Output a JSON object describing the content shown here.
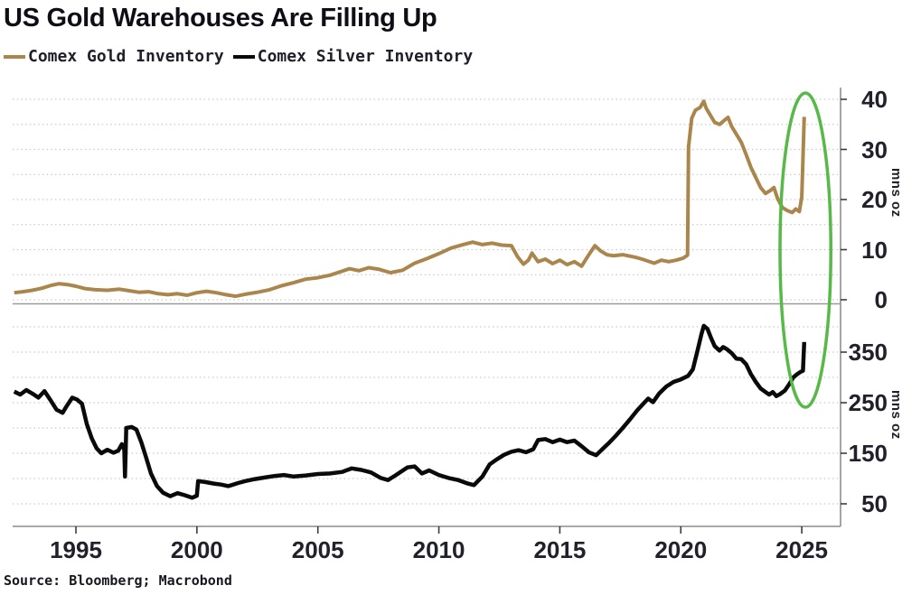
{
  "title": "US Gold Warehouses Are Filling Up",
  "source": "Source: Bloomberg; Macrobond",
  "colors": {
    "background": "#ffffff",
    "text": "#21212b",
    "gold_line": "#aa864d",
    "silver_line": "#0a0a0a",
    "grid": "#c9c9c9",
    "axis": "#9b9b9b",
    "tick": "#3c3c46",
    "annotation_green": "#57b947"
  },
  "legend": {
    "items": [
      {
        "label": "Comex Gold Inventory",
        "color": "#aa864d"
      },
      {
        "label": "Comex Silver Inventory",
        "color": "#0a0a0a"
      }
    ]
  },
  "x_axis": {
    "tick_labels": [
      "1995",
      "2000",
      "2005",
      "2010",
      "2015",
      "2020",
      "2025"
    ],
    "tick_years": [
      1995,
      2000,
      2005,
      2010,
      2015,
      2020,
      2025
    ],
    "range_years": [
      1992.4,
      2026.6
    ]
  },
  "annotation": {
    "shape": "ellipse",
    "color": "#57b947",
    "x_year_range": [
      2024.1,
      2026.2
    ],
    "covers_panels": [
      "top",
      "bottom"
    ]
  },
  "chart_data": [
    {
      "type": "line",
      "panel": "top",
      "ylabel": "mns oz",
      "yticks": [
        0,
        10,
        20,
        30,
        40
      ],
      "ylim": [
        0,
        42.5
      ],
      "grid_interval": 5,
      "grid_max": 40,
      "series": [
        {
          "name": "Comex Gold Inventory",
          "color": "#aa864d",
          "points": [
            [
              1992.45,
              1.4
            ],
            [
              1992.8,
              1.6
            ],
            [
              1993.2,
              1.9
            ],
            [
              1993.6,
              2.3
            ],
            [
              1994.0,
              2.9
            ],
            [
              1994.3,
              3.2
            ],
            [
              1994.7,
              3.0
            ],
            [
              1995.0,
              2.7
            ],
            [
              1995.4,
              2.2
            ],
            [
              1995.8,
              2.0
            ],
            [
              1996.3,
              1.9
            ],
            [
              1996.8,
              2.1
            ],
            [
              1997.2,
              1.8
            ],
            [
              1997.6,
              1.5
            ],
            [
              1998.0,
              1.6
            ],
            [
              1998.4,
              1.2
            ],
            [
              1998.8,
              1.0
            ],
            [
              1999.2,
              1.2
            ],
            [
              1999.6,
              0.9
            ],
            [
              2000.0,
              1.4
            ],
            [
              2000.4,
              1.7
            ],
            [
              2000.8,
              1.4
            ],
            [
              2001.2,
              1.0
            ],
            [
              2001.6,
              0.7
            ],
            [
              2002.0,
              1.1
            ],
            [
              2002.5,
              1.5
            ],
            [
              2003.0,
              2.0
            ],
            [
              2003.5,
              2.8
            ],
            [
              2004.0,
              3.4
            ],
            [
              2004.5,
              4.1
            ],
            [
              2005.0,
              4.4
            ],
            [
              2005.5,
              4.9
            ],
            [
              2006.0,
              5.7
            ],
            [
              2006.3,
              6.2
            ],
            [
              2006.7,
              5.8
            ],
            [
              2007.1,
              6.4
            ],
            [
              2007.5,
              6.1
            ],
            [
              2008.0,
              5.4
            ],
            [
              2008.5,
              5.9
            ],
            [
              2009.0,
              7.3
            ],
            [
              2009.5,
              8.2
            ],
            [
              2010.0,
              9.2
            ],
            [
              2010.5,
              10.3
            ],
            [
              2011.0,
              11.0
            ],
            [
              2011.4,
              11.5
            ],
            [
              2011.8,
              11.0
            ],
            [
              2012.2,
              11.3
            ],
            [
              2012.6,
              10.9
            ],
            [
              2013.0,
              10.8
            ],
            [
              2013.25,
              8.6
            ],
            [
              2013.5,
              7.1
            ],
            [
              2013.7,
              7.9
            ],
            [
              2013.85,
              9.3
            ],
            [
              2014.1,
              7.6
            ],
            [
              2014.4,
              8.1
            ],
            [
              2014.7,
              7.2
            ],
            [
              2015.0,
              7.9
            ],
            [
              2015.3,
              7.0
            ],
            [
              2015.6,
              7.6
            ],
            [
              2015.9,
              6.7
            ],
            [
              2016.2,
              9.0
            ],
            [
              2016.45,
              10.8
            ],
            [
              2016.7,
              9.7
            ],
            [
              2016.95,
              9.0
            ],
            [
              2017.2,
              8.8
            ],
            [
              2017.6,
              9.0
            ],
            [
              2018.1,
              8.5
            ],
            [
              2018.4,
              8.1
            ],
            [
              2018.9,
              7.3
            ],
            [
              2019.2,
              7.9
            ],
            [
              2019.5,
              7.6
            ],
            [
              2019.8,
              7.9
            ],
            [
              2020.1,
              8.3
            ],
            [
              2020.28,
              8.9
            ],
            [
              2020.32,
              30.5
            ],
            [
              2020.45,
              36.2
            ],
            [
              2020.6,
              37.8
            ],
            [
              2020.8,
              38.4
            ],
            [
              2020.95,
              39.6
            ],
            [
              2021.05,
              38.2
            ],
            [
              2021.2,
              37.0
            ],
            [
              2021.4,
              35.4
            ],
            [
              2021.6,
              35.0
            ],
            [
              2021.8,
              35.8
            ],
            [
              2021.95,
              36.4
            ],
            [
              2022.1,
              34.6
            ],
            [
              2022.3,
              33.0
            ],
            [
              2022.5,
              31.4
            ],
            [
              2022.7,
              29.0
            ],
            [
              2022.9,
              26.4
            ],
            [
              2023.1,
              24.4
            ],
            [
              2023.3,
              22.4
            ],
            [
              2023.5,
              21.2
            ],
            [
              2023.7,
              21.8
            ],
            [
              2023.85,
              22.4
            ],
            [
              2024.0,
              20.2
            ],
            [
              2024.2,
              18.4
            ],
            [
              2024.4,
              17.8
            ],
            [
              2024.6,
              17.4
            ],
            [
              2024.75,
              18.1
            ],
            [
              2024.9,
              17.6
            ],
            [
              2025.0,
              20.5
            ],
            [
              2025.1,
              36.5
            ]
          ]
        }
      ]
    },
    {
      "type": "line",
      "panel": "bottom",
      "ylabel": "mns oz",
      "yticks": [
        50,
        150,
        250,
        350
      ],
      "ylim": [
        5,
        450
      ],
      "grid_interval": 50,
      "grid_max": 400,
      "series": [
        {
          "name": "Comex Silver Inventory",
          "color": "#0a0a0a",
          "points": [
            [
              1992.45,
              272
            ],
            [
              1992.7,
              266
            ],
            [
              1992.95,
              275
            ],
            [
              1993.2,
              268
            ],
            [
              1993.45,
              260
            ],
            [
              1993.7,
              273
            ],
            [
              1993.95,
              255
            ],
            [
              1994.2,
              236
            ],
            [
              1994.45,
              230
            ],
            [
              1994.6,
              242
            ],
            [
              1994.85,
              260
            ],
            [
              1995.05,
              256
            ],
            [
              1995.25,
              248
            ],
            [
              1995.45,
              208
            ],
            [
              1995.65,
              180
            ],
            [
              1995.85,
              160
            ],
            [
              1996.05,
              150
            ],
            [
              1996.3,
              157
            ],
            [
              1996.55,
              151
            ],
            [
              1996.75,
              155
            ],
            [
              1996.9,
              168
            ],
            [
              1997.0,
              157
            ],
            [
              1997.03,
              104
            ],
            [
              1997.08,
              200
            ],
            [
              1997.3,
              202
            ],
            [
              1997.5,
              197
            ],
            [
              1997.7,
              172
            ],
            [
              1997.9,
              142
            ],
            [
              1998.1,
              110
            ],
            [
              1998.35,
              85
            ],
            [
              1998.6,
              72
            ],
            [
              1998.9,
              65
            ],
            [
              1999.2,
              71
            ],
            [
              1999.5,
              67
            ],
            [
              1999.8,
              62
            ],
            [
              2000.0,
              66
            ],
            [
              2000.05,
              95
            ],
            [
              2000.35,
              93
            ],
            [
              2000.7,
              90
            ],
            [
              2001.0,
              88
            ],
            [
              2001.3,
              85
            ],
            [
              2001.7,
              91
            ],
            [
              2002.0,
              95
            ],
            [
              2002.4,
              99
            ],
            [
              2002.8,
              102
            ],
            [
              2003.2,
              105
            ],
            [
              2003.6,
              107
            ],
            [
              2004.0,
              104
            ],
            [
              2004.5,
              106
            ],
            [
              2005.0,
              109
            ],
            [
              2005.5,
              110
            ],
            [
              2006.0,
              113
            ],
            [
              2006.4,
              120
            ],
            [
              2006.8,
              117
            ],
            [
              2007.2,
              112
            ],
            [
              2007.6,
              101
            ],
            [
              2007.9,
              97
            ],
            [
              2008.2,
              106
            ],
            [
              2008.7,
              122
            ],
            [
              2009.0,
              124
            ],
            [
              2009.3,
              110
            ],
            [
              2009.6,
              116
            ],
            [
              2010.0,
              107
            ],
            [
              2010.4,
              101
            ],
            [
              2010.8,
              97
            ],
            [
              2011.2,
              90
            ],
            [
              2011.45,
              87
            ],
            [
              2011.8,
              104
            ],
            [
              2012.1,
              128
            ],
            [
              2012.4,
              138
            ],
            [
              2012.7,
              147
            ],
            [
              2013.0,
              153
            ],
            [
              2013.3,
              156
            ],
            [
              2013.6,
              152
            ],
            [
              2013.9,
              158
            ],
            [
              2014.1,
              176
            ],
            [
              2014.4,
              178
            ],
            [
              2014.7,
              172
            ],
            [
              2015.0,
              177
            ],
            [
              2015.3,
              172
            ],
            [
              2015.6,
              175
            ],
            [
              2015.9,
              164
            ],
            [
              2016.2,
              152
            ],
            [
              2016.5,
              146
            ],
            [
              2016.8,
              160
            ],
            [
              2017.0,
              169
            ],
            [
              2017.3,
              184
            ],
            [
              2017.6,
              200
            ],
            [
              2017.9,
              217
            ],
            [
              2018.2,
              235
            ],
            [
              2018.45,
              248
            ],
            [
              2018.65,
              258
            ],
            [
              2018.85,
              251
            ],
            [
              2019.1,
              268
            ],
            [
              2019.4,
              282
            ],
            [
              2019.7,
              291
            ],
            [
              2020.0,
              296
            ],
            [
              2020.3,
              303
            ],
            [
              2020.5,
              316
            ],
            [
              2020.7,
              355
            ],
            [
              2020.85,
              385
            ],
            [
              2020.95,
              402
            ],
            [
              2021.1,
              396
            ],
            [
              2021.25,
              378
            ],
            [
              2021.4,
              362
            ],
            [
              2021.6,
              353
            ],
            [
              2021.75,
              360
            ],
            [
              2021.9,
              356
            ],
            [
              2022.1,
              348
            ],
            [
              2022.3,
              337
            ],
            [
              2022.5,
              336
            ],
            [
              2022.7,
              326
            ],
            [
              2022.9,
              306
            ],
            [
              2023.1,
              291
            ],
            [
              2023.3,
              278
            ],
            [
              2023.5,
              271
            ],
            [
              2023.65,
              266
            ],
            [
              2023.8,
              271
            ],
            [
              2023.95,
              263
            ],
            [
              2024.1,
              267
            ],
            [
              2024.3,
              274
            ],
            [
              2024.5,
              288
            ],
            [
              2024.65,
              300
            ],
            [
              2024.8,
              306
            ],
            [
              2024.95,
              311
            ],
            [
              2025.05,
              313
            ],
            [
              2025.1,
              370
            ]
          ]
        }
      ]
    }
  ]
}
